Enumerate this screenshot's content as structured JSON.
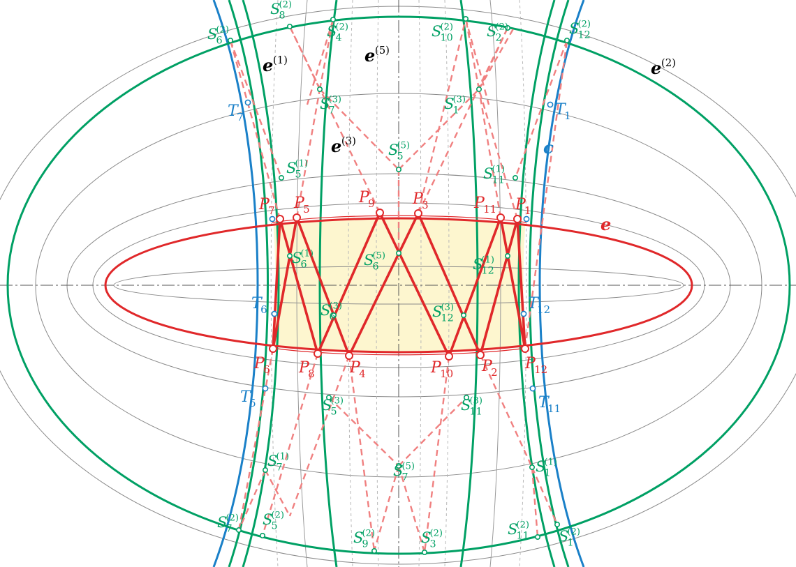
{
  "colors": {
    "green": "#00a064",
    "blue": "#1a80c8",
    "red": "#e0282a",
    "dashed_red": "#f08080",
    "fill": "#fdf6cf",
    "gray": "#8a8a8a",
    "light_gray": "#b8b8b8",
    "axis": "#555555",
    "black": "#000000"
  },
  "curve_labels": {
    "e1": {
      "base": "e",
      "sup": "(1)"
    },
    "e2": {
      "base": "e",
      "sup": "(2)"
    },
    "e3": {
      "base": "e",
      "sup": "(3)"
    },
    "e5": {
      "base": "e",
      "sup": "(5)"
    },
    "e": {
      "base": "e"
    },
    "c": {
      "base": "c"
    }
  },
  "P_labels": [
    {
      "base": "P",
      "sub": "1"
    },
    {
      "base": "P",
      "sub": "2"
    },
    {
      "base": "P",
      "sub": "3"
    },
    {
      "base": "P",
      "sub": "4"
    },
    {
      "base": "P",
      "sub": "5"
    },
    {
      "base": "P",
      "sub": "6"
    },
    {
      "base": "P",
      "sub": "7"
    },
    {
      "base": "P",
      "sub": "8"
    },
    {
      "base": "P",
      "sub": "9"
    },
    {
      "base": "P",
      "sub": "10"
    },
    {
      "base": "P",
      "sub": "11"
    },
    {
      "base": "P",
      "sub": "12"
    }
  ],
  "T_labels": [
    {
      "base": "T",
      "sub": "1"
    },
    {
      "base": "T",
      "sub": "5"
    },
    {
      "base": "T",
      "sub": "6"
    },
    {
      "base": "T",
      "sub": "7"
    },
    {
      "base": "T",
      "sub": "11"
    },
    {
      "base": "T",
      "sub": "12"
    }
  ],
  "S_labels": [
    {
      "base": "S",
      "sub": "8",
      "sup": "(2)"
    },
    {
      "base": "S",
      "sub": "6",
      "sup": "(2)"
    },
    {
      "base": "S",
      "sub": "4",
      "sup": "(2)"
    },
    {
      "base": "S",
      "sub": "10",
      "sup": "(2)"
    },
    {
      "base": "S",
      "sub": "2",
      "sup": "(2)"
    },
    {
      "base": "S",
      "sub": "12",
      "sup": "(2)"
    },
    {
      "base": "S",
      "sub": "7",
      "sup": "(3)"
    },
    {
      "base": "S",
      "sub": "1",
      "sup": "(3)"
    },
    {
      "base": "S",
      "sub": "5",
      "sup": "(5)"
    },
    {
      "base": "S",
      "sub": "5",
      "sup": "(1)"
    },
    {
      "base": "S",
      "sub": "11",
      "sup": "(1)"
    },
    {
      "base": "S",
      "sub": "6",
      "sup": "(1)"
    },
    {
      "base": "S",
      "sub": "6",
      "sup": "(5)"
    },
    {
      "base": "S",
      "sub": "12",
      "sup": "(1)"
    },
    {
      "base": "S",
      "sub": "6",
      "sup": "(3)"
    },
    {
      "base": "S",
      "sub": "12",
      "sup": "(3)"
    },
    {
      "base": "S",
      "sub": "5",
      "sup": "(3)"
    },
    {
      "base": "S",
      "sub": "11",
      "sup": "(3)"
    },
    {
      "base": "S",
      "sub": "7",
      "sup": "(1)"
    },
    {
      "base": "S",
      "sub": "7",
      "sup": "(5)"
    },
    {
      "base": "S",
      "sub": "1",
      "sup": "(1)"
    },
    {
      "base": "S",
      "sub": "7",
      "sup": "(2)"
    },
    {
      "base": "S",
      "sub": "5",
      "sup": "(2)"
    },
    {
      "base": "S",
      "sub": "9",
      "sup": "(2)"
    },
    {
      "base": "S",
      "sub": "3",
      "sup": "(2)"
    },
    {
      "base": "S",
      "sub": "11",
      "sup": "(2)"
    },
    {
      "base": "S",
      "sub": "1",
      "sup": "(2)"
    }
  ]
}
